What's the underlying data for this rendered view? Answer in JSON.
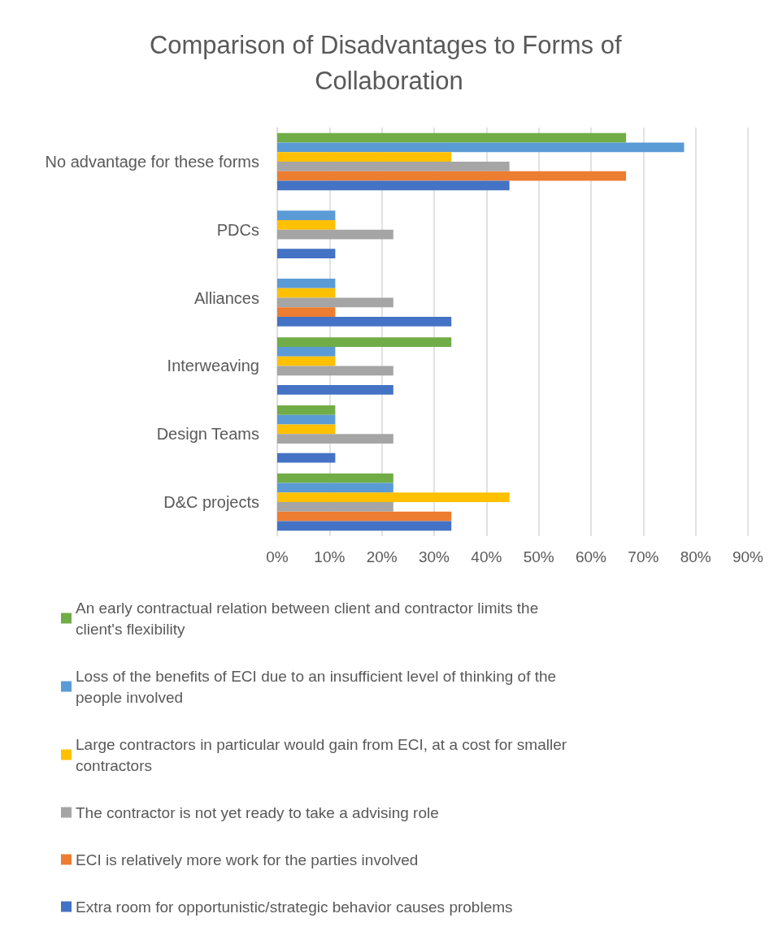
{
  "chart_data": {
    "type": "bar",
    "orientation": "horizontal",
    "title": "Comparison of Disadvantages to Forms of Collaboration",
    "categories": [
      "No advantage for these forms",
      "PDCs",
      "Alliances",
      "Interweaving",
      "Design Teams",
      "D&C projects"
    ],
    "series": [
      {
        "name": "An early contractual relation between client and contractor limits the client's flexibility",
        "color": "#70ad47",
        "values": [
          66.7,
          0,
          0,
          33.3,
          11.1,
          22.2
        ]
      },
      {
        "name": "Loss of the benefits of ECI due to an insufficient level of thinking of the people involved",
        "color": "#5b9bd5",
        "values": [
          77.8,
          11.1,
          11.1,
          11.1,
          11.1,
          22.2
        ]
      },
      {
        "name": "Large contractors in particular would gain from ECI, at a cost for smaller contractors",
        "color": "#ffc000",
        "values": [
          33.3,
          11.1,
          11.1,
          11.1,
          11.1,
          44.4
        ]
      },
      {
        "name": "The contractor is not yet ready to take a advising role",
        "color": "#a5a5a5",
        "values": [
          44.4,
          22.2,
          22.2,
          22.2,
          22.2,
          22.2
        ]
      },
      {
        "name": "ECI is relatively more work for the parties involved",
        "color": "#ed7d31",
        "values": [
          66.7,
          0,
          11.1,
          0,
          0,
          33.3
        ]
      },
      {
        "name": "Extra room for opportunistic/strategic behavior causes problems",
        "color": "#4472c4",
        "values": [
          44.4,
          11.1,
          33.3,
          22.2,
          11.1,
          33.3
        ]
      }
    ],
    "xlim": [
      0,
      90
    ],
    "xticks": [
      {
        "value": 0,
        "label": "0%"
      },
      {
        "value": 10,
        "label": "10%"
      },
      {
        "value": 20,
        "label": "20%"
      },
      {
        "value": 30,
        "label": "30%"
      },
      {
        "value": 40,
        "label": "40%"
      },
      {
        "value": 50,
        "label": "50%"
      },
      {
        "value": 60,
        "label": "60%"
      },
      {
        "value": 70,
        "label": "70%"
      },
      {
        "value": 80,
        "label": "80%"
      },
      {
        "value": 90,
        "label": "90%"
      }
    ],
    "grid": "x",
    "legend": "bottom"
  }
}
